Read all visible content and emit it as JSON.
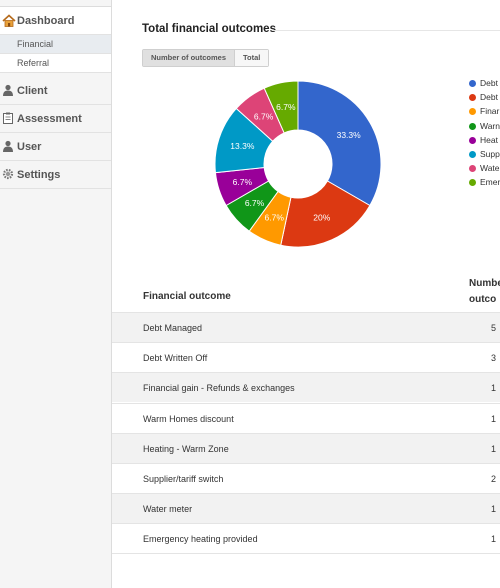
{
  "sidebar": {
    "items": [
      {
        "label": "Dashboard",
        "icon": "home-icon"
      },
      {
        "label": "Client",
        "icon": "person-icon"
      },
      {
        "label": "Assessment",
        "icon": "clipboard-icon"
      },
      {
        "label": "User",
        "icon": "person-icon"
      },
      {
        "label": "Settings",
        "icon": "gear-icon"
      }
    ],
    "subitems": [
      {
        "label": "Financial",
        "active": true
      },
      {
        "label": "Referral",
        "active": false
      }
    ]
  },
  "main": {
    "title": "Total financial outcomes",
    "toggle": {
      "active": "Number of outcomes",
      "other": "Total"
    }
  },
  "chart_data": {
    "type": "pie",
    "donut": true,
    "categories": [
      "Debt Managed",
      "Debt Written Off",
      "Financial gain - Refunds & exchanges",
      "Warm Homes discount",
      "Heating - Warm Zone",
      "Supplier/tariff switch",
      "Water meter",
      "Emergency heating provided"
    ],
    "values": [
      5,
      3,
      1,
      1,
      1,
      2,
      1,
      1
    ],
    "slice_labels": [
      "33.3%",
      "20%",
      "6.7%",
      "6.7%",
      "6.7%",
      "13.3%",
      "6.7%",
      "6.7%"
    ],
    "colors": [
      "#3366cc",
      "#dc3912",
      "#ff9900",
      "#109618",
      "#990099",
      "#0099c6",
      "#dd4477",
      "#66aa00"
    ],
    "legend_labels": [
      "Debt",
      "Debt",
      "Finar",
      "Warn",
      "Heat",
      "Supp",
      "Wate",
      "Emer"
    ],
    "legend_position": "right"
  },
  "table": {
    "headers": {
      "outcome": "Financial outcome",
      "count_line1": "Numbe",
      "count_line2": "outco"
    },
    "rows": [
      {
        "outcome": "Debt Managed",
        "count": "5"
      },
      {
        "outcome": "Debt Written Off",
        "count": "3"
      },
      {
        "outcome": "Financial gain - Refunds & exchanges",
        "count": "1"
      },
      {
        "outcome": "Warm Homes discount",
        "count": "1"
      },
      {
        "outcome": "Heating - Warm Zone",
        "count": "1"
      },
      {
        "outcome": "Supplier/tariff switch",
        "count": "2"
      },
      {
        "outcome": "Water meter",
        "count": "1"
      },
      {
        "outcome": "Emergency heating provided",
        "count": "1"
      }
    ]
  }
}
